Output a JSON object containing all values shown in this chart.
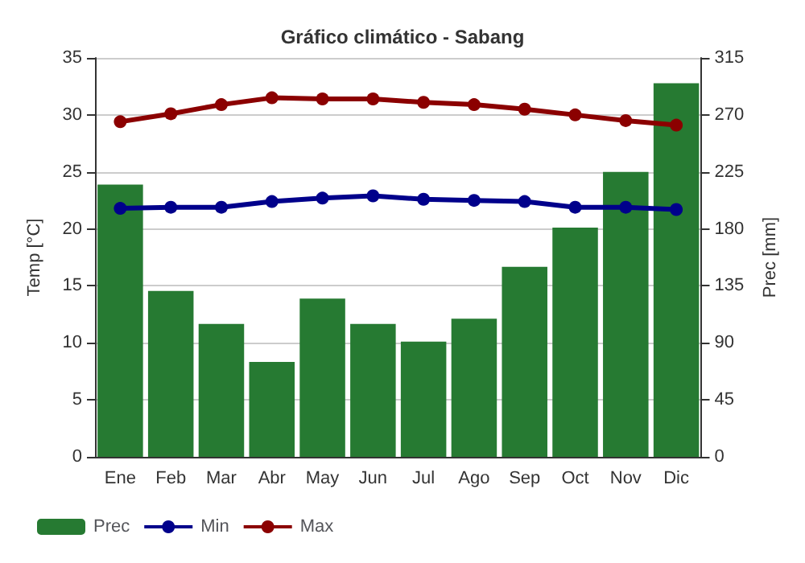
{
  "chart_data": {
    "type": "bar",
    "title": "Gráfico climático - Sabang",
    "ylabel": "Temp [°C]",
    "y2label": "Prec [mm]",
    "categories": [
      "Ene",
      "Feb",
      "Mar",
      "Abr",
      "May",
      "Jun",
      "Jul",
      "Ago",
      "Sep",
      "Oct",
      "Nov",
      "Dic"
    ],
    "series": [
      {
        "name": "Prec",
        "axis": "y2",
        "color": "#267a32",
        "values": [
          215,
          131,
          105,
          75,
          125,
          105,
          91,
          109,
          150,
          181,
          225,
          295
        ]
      },
      {
        "name": "Min",
        "type": "line",
        "color": "#00008b",
        "values": [
          21.8,
          21.9,
          21.9,
          22.4,
          22.7,
          22.9,
          22.6,
          22.5,
          22.4,
          21.9,
          21.9,
          21.7
        ]
      },
      {
        "name": "Max",
        "type": "line",
        "color": "#8b0000",
        "values": [
          29.4,
          30.1,
          30.9,
          31.5,
          31.4,
          31.4,
          31.1,
          30.9,
          30.5,
          30.0,
          29.5,
          29.1
        ]
      }
    ],
    "ylim": [
      0,
      35
    ],
    "yticks": [
      0,
      5,
      10,
      15,
      20,
      25,
      30,
      35
    ],
    "y2lim": [
      0,
      315
    ],
    "y2ticks": [
      0,
      45,
      90,
      135,
      180,
      225,
      270,
      315
    ],
    "grid": "y",
    "legend": "bottom left",
    "marker": "circle",
    "line_style": "solid"
  }
}
